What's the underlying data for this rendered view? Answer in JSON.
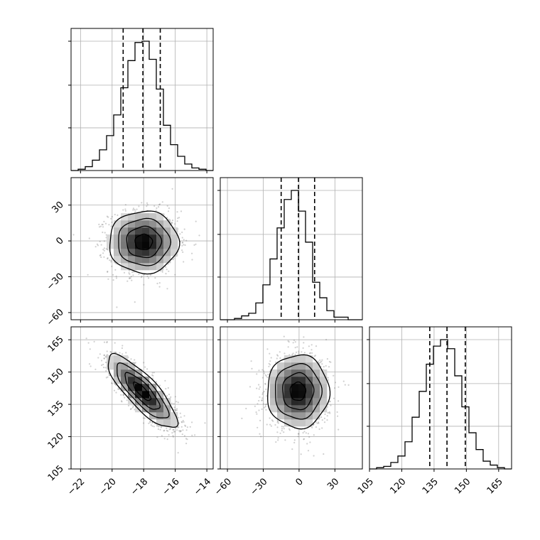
{
  "chart_data": [
    {
      "type": "histogram",
      "panel": "p0_hist",
      "x_range": [
        -22.6,
        -13.6
      ],
      "x_ticks": [
        -22,
        -20,
        -18,
        -16,
        -14
      ],
      "y_range": [
        0,
        1.0
      ],
      "bin_edges": [
        -22.6,
        -22.15,
        -21.7,
        -21.25,
        -20.8,
        -20.35,
        -19.9,
        -19.45,
        -19.0,
        -18.55,
        -18.1,
        -17.65,
        -17.2,
        -16.75,
        -16.3,
        -15.85,
        -15.4,
        -14.95,
        -14.5,
        -14.05,
        -13.6
      ],
      "counts": [
        0.0,
        0.01,
        0.03,
        0.08,
        0.16,
        0.27,
        0.43,
        0.64,
        0.85,
        0.99,
        1.0,
        0.86,
        0.63,
        0.35,
        0.2,
        0.11,
        0.05,
        0.02,
        0.01,
        0.0
      ],
      "quantiles": [
        -19.3,
        -18.05,
        -16.95
      ],
      "grid": true
    },
    {
      "type": "histogram",
      "panel": "p1_hist",
      "x_range": [
        -66,
        53
      ],
      "x_ticks": [
        -60,
        -30,
        0,
        30
      ],
      "y_range": [
        0,
        1.0
      ],
      "bin_edges": [
        -66,
        -60.05,
        -54.1,
        -48.15,
        -42.2,
        -36.25,
        -30.3,
        -24.35,
        -18.4,
        -12.45,
        -6.5,
        -0.55,
        5.4,
        11.35,
        17.3,
        23.25,
        29.2,
        35.15,
        41.1,
        47.05,
        53
      ],
      "counts": [
        0.0,
        0.0,
        0.01,
        0.03,
        0.05,
        0.13,
        0.27,
        0.47,
        0.71,
        0.93,
        1.0,
        0.84,
        0.6,
        0.29,
        0.17,
        0.07,
        0.02,
        0.02,
        0.0,
        0.0
      ],
      "quantiles": [
        -15,
        -0.5,
        13
      ],
      "grid": true
    },
    {
      "type": "histogram",
      "panel": "p2_hist",
      "x_range": [
        105,
        171
      ],
      "x_ticks": [
        105,
        120,
        135,
        150,
        165
      ],
      "y_range": [
        0,
        1.0
      ],
      "bin_edges": [
        105,
        108.3,
        111.6,
        114.9,
        118.2,
        121.5,
        124.8,
        128.1,
        131.4,
        134.7,
        138.0,
        141.3,
        144.6,
        147.9,
        151.2,
        154.5,
        157.8,
        161.1,
        164.4,
        167.7,
        171
      ],
      "counts": [
        0.0,
        0.01,
        0.02,
        0.05,
        0.1,
        0.21,
        0.4,
        0.6,
        0.81,
        0.95,
        1.0,
        0.93,
        0.72,
        0.48,
        0.28,
        0.15,
        0.06,
        0.03,
        0.01,
        0.0
      ],
      "quantiles": [
        133,
        141,
        149.5
      ],
      "grid": true
    },
    {
      "type": "scatter_density",
      "panel": "p0_vs_p1",
      "x_range": [
        -22.6,
        -13.6
      ],
      "y_range": [
        -66,
        53
      ],
      "y_ticks": [
        -60,
        -30,
        0,
        30
      ],
      "center": [
        -18.0,
        -1
      ],
      "sigma": [
        1.1,
        13.0
      ],
      "correlation": 0.0,
      "contour_levels": [
        "0.5σ",
        "1σ",
        "1.5σ",
        "2σ"
      ],
      "grid": true
    },
    {
      "type": "scatter_density",
      "panel": "p0_vs_p2",
      "x_range": [
        -22.6,
        -13.6
      ],
      "y_range": [
        105,
        171
      ],
      "x_ticks": [
        -22,
        -20,
        -18,
        -16,
        -14
      ],
      "y_ticks": [
        105,
        120,
        135,
        150,
        165
      ],
      "center": [
        -18.1,
        141
      ],
      "sigma": [
        1.1,
        8.5
      ],
      "correlation": -0.82,
      "contour_levels": [
        "0.5σ",
        "1σ",
        "1.5σ",
        "2σ"
      ],
      "grid": true
    },
    {
      "type": "scatter_density",
      "panel": "p1_vs_p2",
      "x_range": [
        -66,
        53
      ],
      "y_range": [
        105,
        171
      ],
      "x_ticks": [
        -60,
        -30,
        0,
        30
      ],
      "center": [
        -1,
        141
      ],
      "sigma": [
        13.0,
        8.5
      ],
      "correlation": 0.0,
      "contour_levels": [
        "0.5σ",
        "1σ",
        "1.5σ",
        "2σ"
      ],
      "grid": true
    }
  ]
}
